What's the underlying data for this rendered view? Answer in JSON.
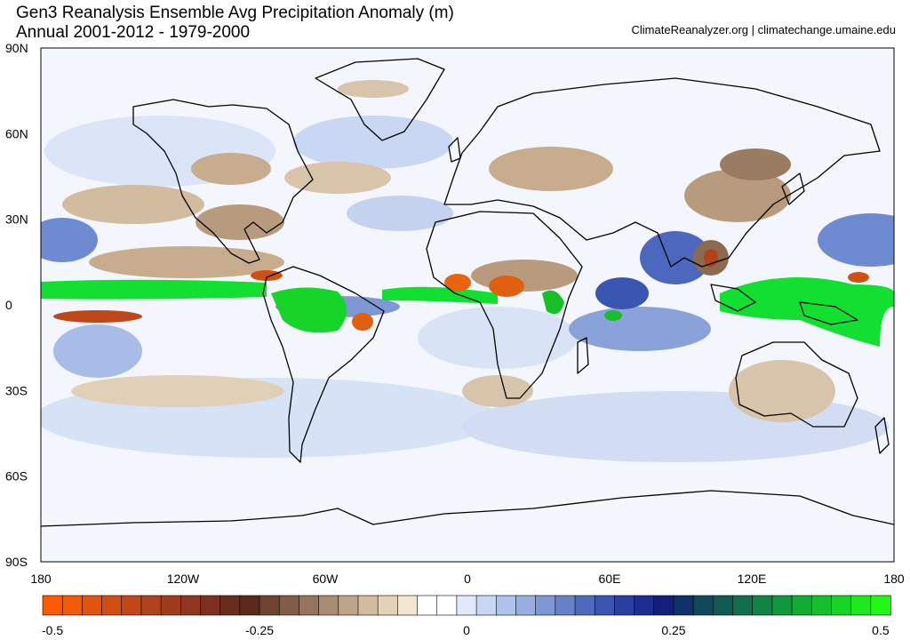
{
  "header": {
    "title": "Gen3 Reanalysis Ensemble Avg Precipitation Anomaly (m)",
    "subtitle": "Annual 2001-2012 - 1979-2000",
    "source": "ClimateReanalyzer.org | climatechange.umaine.edu"
  },
  "map": {
    "lat_labels": [
      "90N",
      "60N",
      "30N",
      "0",
      "30S",
      "60S",
      "90S"
    ],
    "lon_labels": [
      "180",
      "120W",
      "60W",
      "0",
      "60E",
      "120E",
      "180"
    ]
  },
  "colorbar": {
    "colors": [
      "#ff5a00",
      "#f05a08",
      "#e05410",
      "#d04e14",
      "#c04818",
      "#b0421c",
      "#a03c1e",
      "#8e3620",
      "#7c3020",
      "#6a2c1e",
      "#5a2a1c",
      "#6e4430",
      "#825c46",
      "#96745c",
      "#aa8c72",
      "#bea488",
      "#d2bca0",
      "#e4d2b8",
      "#f2e6d2",
      "#ffffff",
      "#ffffff",
      "#dfe9fa",
      "#c6d6f4",
      "#aec2ec",
      "#96aee2",
      "#7e98d6",
      "#6682ca",
      "#4e6cbe",
      "#3a56b0",
      "#2a40a0",
      "#1c2c90",
      "#12207c",
      "#10306a",
      "#10485c",
      "#105c54",
      "#10704c",
      "#108444",
      "#10983c",
      "#12ac34",
      "#14c02c",
      "#18d424",
      "#1ce81c",
      "#20f818"
    ],
    "tick_labels": [
      "-0.5",
      "-0.25",
      "0",
      "0.25",
      "0.5"
    ],
    "tick_values": [
      -0.5,
      -0.25,
      0,
      0.25,
      0.5
    ],
    "range": [
      -0.5,
      0.5
    ]
  },
  "palette": {
    "ocean_base": "#f3f6fc",
    "itcz_green": "#12e030",
    "dry_orange": "#e8640e",
    "dry_brown": "#b89a7c",
    "wet_blue": "#4c68be",
    "coast": "#000000"
  }
}
